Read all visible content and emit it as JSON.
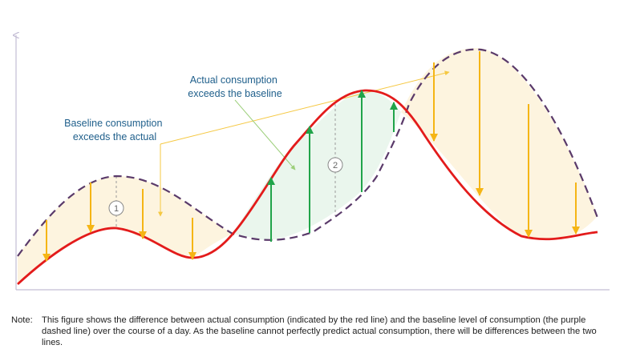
{
  "annotations": {
    "baseline_exceeds": [
      "Baseline consumption",
      "exceeds the actual"
    ],
    "actual_exceeds": [
      "Actual consumption",
      "exceeds the baseline"
    ]
  },
  "markers": [
    "1",
    "2"
  ],
  "note": {
    "label": "Note:",
    "text": "This figure shows the difference between actual consumption (indicated by the red line) and the baseline level of consumption (the purple dashed line) over the course of a day. As the baseline cannot perfectly predict actual consumption, there will be differences between the two lines."
  },
  "colors": {
    "actual_line": "#e31b1b",
    "baseline_line": "#5a3a6a",
    "baseline_exceeds_fill": "#fdf3dc",
    "actual_exceeds_fill": "#e9f6ec",
    "down_arrow": "#f5b515",
    "up_arrow": "#21a44a",
    "axis": "#c3bdd4",
    "annotation_text": "#1f5f8b"
  }
}
